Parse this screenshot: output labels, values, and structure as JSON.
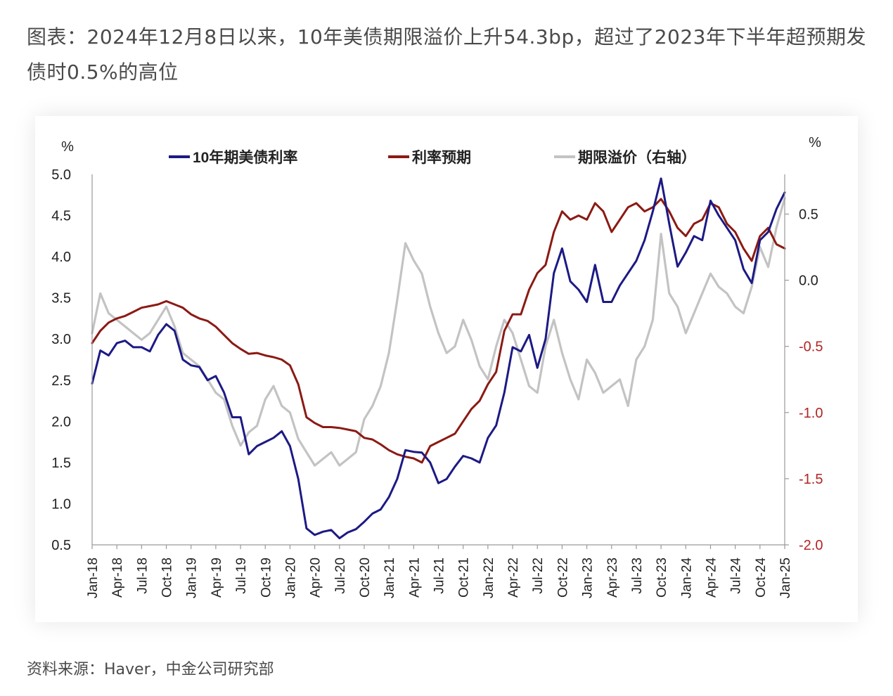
{
  "caption": "图表：2024年12月8日以来，10年美债期限溢价上升54.3bp，超过了2023年下半年超预期发债时0.5%的高位",
  "source": "资料来源：Haver，中金公司研究部",
  "colors": {
    "yield": "#1c1a84",
    "expected": "#8b1a14",
    "premium": "#c3c3c3",
    "right_axis": "#b32424"
  },
  "chart_data": {
    "type": "line",
    "left_unit": "%",
    "right_unit": "%",
    "left_ylim": [
      0.5,
      5.0
    ],
    "right_ylim": [
      -2.0,
      0.8
    ],
    "left_ticks": [
      "0.5",
      "1.0",
      "1.5",
      "2.0",
      "2.5",
      "3.0",
      "3.5",
      "4.0",
      "4.5",
      "5.0"
    ],
    "right_ticks": [
      "-2.0",
      "-1.5",
      "-1.0",
      "-0.5",
      "0.0",
      "0.5"
    ],
    "right_tick_values": [
      -2.0,
      -1.5,
      -1.0,
      -0.5,
      0.0,
      0.5
    ],
    "x_ticks": [
      "Jan-18",
      "Apr-18",
      "Jul-18",
      "Oct-18",
      "Jan-19",
      "Apr-19",
      "Jul-19",
      "Oct-19",
      "Jan-20",
      "Apr-20",
      "Jul-20",
      "Oct-20",
      "Jan-21",
      "Apr-21",
      "Jul-21",
      "Oct-21",
      "Jan-22",
      "Apr-22",
      "Jul-22",
      "Oct-22",
      "Jan-23",
      "Apr-23",
      "Jul-23",
      "Oct-23",
      "Jan-24",
      "Apr-24",
      "Jul-24",
      "Oct-24",
      "Jan-25"
    ],
    "x_range": [
      "2018-01",
      "2025-01"
    ],
    "legend": [
      "10年期美债利率",
      "利率预期",
      "期限溢价（右轴）"
    ],
    "legend_position": "top",
    "grid": false,
    "series": [
      {
        "name": "10年期美债利率",
        "axis": "left",
        "x": [
          "2018-01",
          "2018-02",
          "2018-03",
          "2018-04",
          "2018-05",
          "2018-06",
          "2018-07",
          "2018-08",
          "2018-09",
          "2018-10",
          "2018-11",
          "2018-12",
          "2019-01",
          "2019-02",
          "2019-03",
          "2019-04",
          "2019-05",
          "2019-06",
          "2019-07",
          "2019-08",
          "2019-09",
          "2019-10",
          "2019-11",
          "2019-12",
          "2020-01",
          "2020-02",
          "2020-03",
          "2020-04",
          "2020-05",
          "2020-06",
          "2020-07",
          "2020-08",
          "2020-09",
          "2020-10",
          "2020-11",
          "2020-12",
          "2021-01",
          "2021-02",
          "2021-03",
          "2021-04",
          "2021-05",
          "2021-06",
          "2021-07",
          "2021-08",
          "2021-09",
          "2021-10",
          "2021-11",
          "2021-12",
          "2022-01",
          "2022-02",
          "2022-03",
          "2022-04",
          "2022-05",
          "2022-06",
          "2022-07",
          "2022-08",
          "2022-09",
          "2022-10",
          "2022-11",
          "2022-12",
          "2023-01",
          "2023-02",
          "2023-03",
          "2023-04",
          "2023-05",
          "2023-06",
          "2023-07",
          "2023-08",
          "2023-09",
          "2023-10",
          "2023-11",
          "2023-12",
          "2024-01",
          "2024-02",
          "2024-03",
          "2024-04",
          "2024-05",
          "2024-06",
          "2024-07",
          "2024-08",
          "2024-09",
          "2024-10",
          "2024-11",
          "2024-12",
          "2025-01"
        ],
        "values": [
          2.46,
          2.86,
          2.8,
          2.95,
          2.98,
          2.9,
          2.9,
          2.85,
          3.05,
          3.18,
          3.1,
          2.75,
          2.68,
          2.66,
          2.5,
          2.55,
          2.35,
          2.05,
          2.05,
          1.6,
          1.7,
          1.75,
          1.8,
          1.88,
          1.7,
          1.3,
          0.7,
          0.62,
          0.66,
          0.68,
          0.58,
          0.65,
          0.69,
          0.78,
          0.88,
          0.93,
          1.08,
          1.3,
          1.65,
          1.63,
          1.62,
          1.5,
          1.25,
          1.3,
          1.45,
          1.58,
          1.55,
          1.5,
          1.8,
          1.95,
          2.35,
          2.9,
          2.85,
          3.05,
          2.65,
          3.0,
          3.8,
          4.1,
          3.7,
          3.6,
          3.45,
          3.9,
          3.45,
          3.45,
          3.65,
          3.8,
          3.95,
          4.2,
          4.55,
          4.95,
          4.4,
          3.88,
          4.05,
          4.25,
          4.2,
          4.68,
          4.5,
          4.35,
          4.2,
          3.85,
          3.68,
          4.2,
          4.3,
          4.58,
          4.78
        ]
      },
      {
        "name": "利率预期",
        "axis": "left",
        "x": [
          "2018-01",
          "2018-02",
          "2018-03",
          "2018-04",
          "2018-05",
          "2018-06",
          "2018-07",
          "2018-08",
          "2018-09",
          "2018-10",
          "2018-11",
          "2018-12",
          "2019-01",
          "2019-02",
          "2019-03",
          "2019-04",
          "2019-05",
          "2019-06",
          "2019-07",
          "2019-08",
          "2019-09",
          "2019-10",
          "2019-11",
          "2019-12",
          "2020-01",
          "2020-02",
          "2020-03",
          "2020-04",
          "2020-05",
          "2020-06",
          "2020-07",
          "2020-08",
          "2020-09",
          "2020-10",
          "2020-11",
          "2020-12",
          "2021-01",
          "2021-02",
          "2021-03",
          "2021-04",
          "2021-05",
          "2021-06",
          "2021-07",
          "2021-08",
          "2021-09",
          "2021-10",
          "2021-11",
          "2021-12",
          "2022-01",
          "2022-02",
          "2022-03",
          "2022-04",
          "2022-05",
          "2022-06",
          "2022-07",
          "2022-08",
          "2022-09",
          "2022-10",
          "2022-11",
          "2022-12",
          "2023-01",
          "2023-02",
          "2023-03",
          "2023-04",
          "2023-05",
          "2023-06",
          "2023-07",
          "2023-08",
          "2023-09",
          "2023-10",
          "2023-11",
          "2023-12",
          "2024-01",
          "2024-02",
          "2024-03",
          "2024-04",
          "2024-05",
          "2024-06",
          "2024-07",
          "2024-08",
          "2024-09",
          "2024-10",
          "2024-11",
          "2024-12",
          "2025-01"
        ],
        "values": [
          2.95,
          3.1,
          3.2,
          3.25,
          3.28,
          3.33,
          3.38,
          3.4,
          3.42,
          3.46,
          3.42,
          3.38,
          3.3,
          3.25,
          3.22,
          3.15,
          3.05,
          2.95,
          2.88,
          2.82,
          2.83,
          2.8,
          2.78,
          2.75,
          2.68,
          2.45,
          2.05,
          1.98,
          1.93,
          1.93,
          1.92,
          1.9,
          1.88,
          1.8,
          1.78,
          1.72,
          1.65,
          1.6,
          1.57,
          1.55,
          1.5,
          1.7,
          1.75,
          1.8,
          1.85,
          2.0,
          2.15,
          2.25,
          2.45,
          2.6,
          3.1,
          3.3,
          3.3,
          3.6,
          3.8,
          3.9,
          4.3,
          4.55,
          4.45,
          4.5,
          4.45,
          4.65,
          4.55,
          4.3,
          4.45,
          4.6,
          4.65,
          4.55,
          4.6,
          4.7,
          4.55,
          4.35,
          4.25,
          4.4,
          4.45,
          4.65,
          4.6,
          4.4,
          4.3,
          4.1,
          3.95,
          4.25,
          4.35,
          4.15,
          4.1
        ]
      },
      {
        "name": "期限溢价（右轴）",
        "axis": "right",
        "x": [
          "2018-01",
          "2018-02",
          "2018-03",
          "2018-04",
          "2018-05",
          "2018-06",
          "2018-07",
          "2018-08",
          "2018-09",
          "2018-10",
          "2018-11",
          "2018-12",
          "2019-01",
          "2019-02",
          "2019-03",
          "2019-04",
          "2019-05",
          "2019-06",
          "2019-07",
          "2019-08",
          "2019-09",
          "2019-10",
          "2019-11",
          "2019-12",
          "2020-01",
          "2020-02",
          "2020-03",
          "2020-04",
          "2020-05",
          "2020-06",
          "2020-07",
          "2020-08",
          "2020-09",
          "2020-10",
          "2020-11",
          "2020-12",
          "2021-01",
          "2021-02",
          "2021-03",
          "2021-04",
          "2021-05",
          "2021-06",
          "2021-07",
          "2021-08",
          "2021-09",
          "2021-10",
          "2021-11",
          "2021-12",
          "2022-01",
          "2022-02",
          "2022-03",
          "2022-04",
          "2022-05",
          "2022-06",
          "2022-07",
          "2022-08",
          "2022-09",
          "2022-10",
          "2022-11",
          "2022-12",
          "2023-01",
          "2023-02",
          "2023-03",
          "2023-04",
          "2023-05",
          "2023-06",
          "2023-07",
          "2023-08",
          "2023-09",
          "2023-10",
          "2023-11",
          "2023-12",
          "2024-01",
          "2024-02",
          "2024-03",
          "2024-04",
          "2024-05",
          "2024-06",
          "2024-07",
          "2024-08",
          "2024-09",
          "2024-10",
          "2024-11",
          "2024-12",
          "2025-01"
        ],
        "values": [
          -0.4,
          -0.1,
          -0.25,
          -0.3,
          -0.35,
          -0.4,
          -0.45,
          -0.4,
          -0.3,
          -0.2,
          -0.35,
          -0.55,
          -0.6,
          -0.65,
          -0.75,
          -0.85,
          -0.9,
          -1.1,
          -1.25,
          -1.15,
          -1.1,
          -0.9,
          -0.8,
          -0.95,
          -1.0,
          -1.2,
          -1.3,
          -1.4,
          -1.35,
          -1.3,
          -1.4,
          -1.35,
          -1.3,
          -1.05,
          -0.95,
          -0.8,
          -0.55,
          -0.15,
          0.28,
          0.15,
          0.05,
          -0.2,
          -0.4,
          -0.55,
          -0.5,
          -0.3,
          -0.45,
          -0.65,
          -0.75,
          -0.5,
          -0.3,
          -0.4,
          -0.6,
          -0.8,
          -0.85,
          -0.5,
          -0.3,
          -0.55,
          -0.75,
          -0.9,
          -0.6,
          -0.7,
          -0.85,
          -0.8,
          -0.75,
          -0.95,
          -0.6,
          -0.5,
          -0.3,
          0.35,
          -0.1,
          -0.2,
          -0.4,
          -0.25,
          -0.1,
          0.05,
          -0.05,
          -0.1,
          -0.2,
          -0.25,
          -0.05,
          0.25,
          0.1,
          0.4,
          0.62
        ]
      }
    ]
  }
}
